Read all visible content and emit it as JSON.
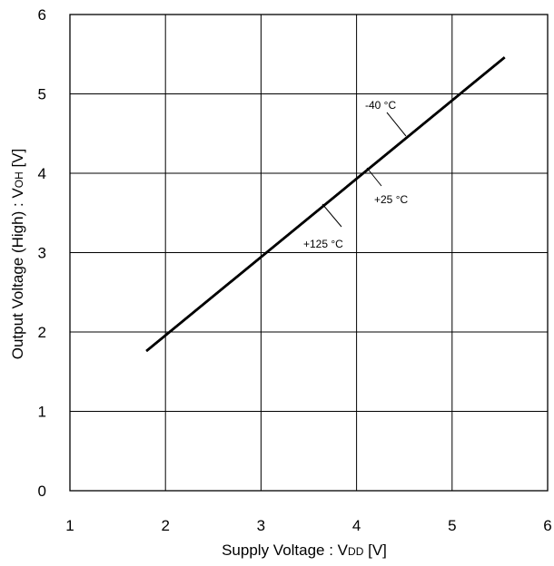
{
  "chart_data": {
    "type": "line",
    "xlabel": "Supply Voltage : V",
    "xlabel_sub": "DD",
    "xlabel_unit": " [V]",
    "ylabel": "Output Voltage (High) : V",
    "ylabel_sub": "OH",
    "ylabel_unit": " [V]",
    "xlim": [
      1,
      6
    ],
    "ylim": [
      0,
      6
    ],
    "xticks": [
      "1",
      "2",
      "3",
      "4",
      "5",
      "6"
    ],
    "yticks": [
      "0",
      "1",
      "2",
      "3",
      "4",
      "5",
      "6"
    ],
    "grid": true,
    "series": [
      {
        "name": "-40 °C",
        "x": [
          1.8,
          5.55
        ],
        "y": [
          1.76,
          5.46
        ]
      },
      {
        "name": "+25 °C",
        "x": [
          1.8,
          5.55
        ],
        "y": [
          1.76,
          5.46
        ]
      },
      {
        "name": "+125 °C",
        "x": [
          1.8,
          5.55
        ],
        "y": [
          1.76,
          5.46
        ]
      }
    ],
    "annotations": [
      {
        "text": "-40 °C",
        "series": "-40 °C"
      },
      {
        "text": "+25 °C",
        "series": "+25 °C"
      },
      {
        "text": "+125 °C",
        "series": "+125 °C"
      }
    ]
  }
}
